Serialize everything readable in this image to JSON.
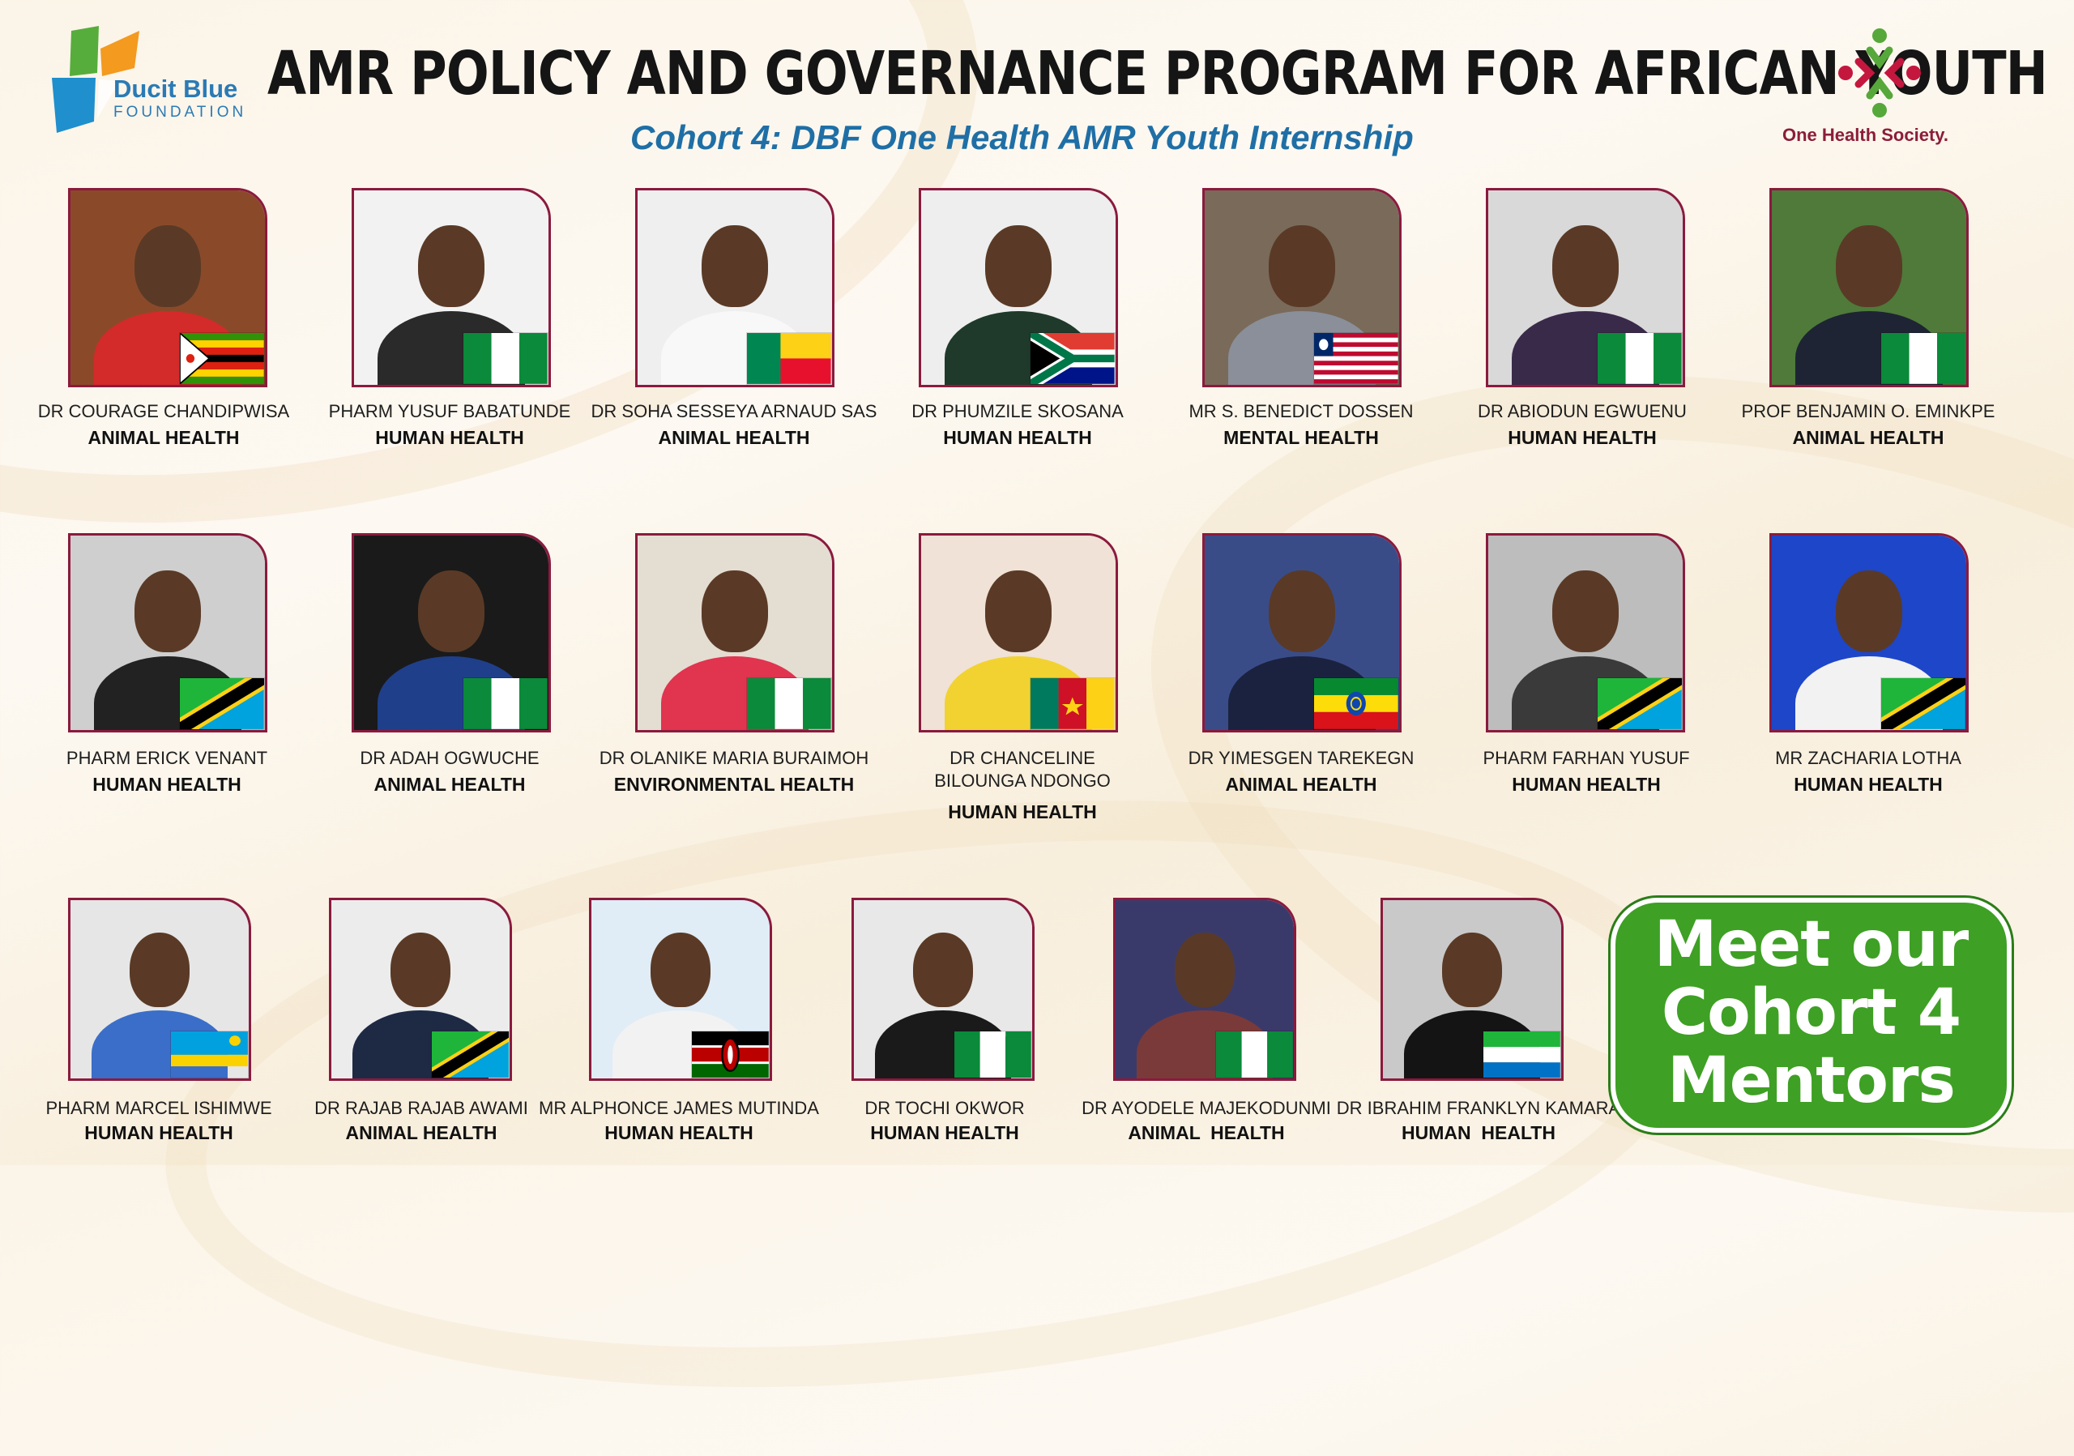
{
  "header": {
    "left_logo": {
      "name": "Ducit Blue",
      "sub": "FOUNDATION"
    },
    "title": "AMR POLICY AND GOVERNANCE  PROGRAM FOR AFRICAN  YOUTH",
    "subtitle": "Cohort 4: DBF  One Health AMR Youth Internship",
    "right_logo": {
      "name": "One Health Society."
    }
  },
  "colors": {
    "accent": "#8b1a3e",
    "subtitle": "#1f6fa6",
    "cta_green": "#3ea024"
  },
  "mentors": [
    {
      "name": "DR COURAGE CHANDIPWISA",
      "field": "ANIMAL HEALTH",
      "flag": "zimbabwe",
      "bg": "#8a4a2a",
      "shirt": "#d32a2a"
    },
    {
      "name": "PHARM YUSUF BABATUNDE",
      "field": "HUMAN HEALTH",
      "flag": "nigeria",
      "bg": "#f2f2f2",
      "shirt": "#2a2a2a"
    },
    {
      "name": "DR SOHA SESSEYA ARNAUD SAS",
      "field": "ANIMAL HEALTH",
      "flag": "benin",
      "bg": "#efefef",
      "shirt": "#f8f8f8"
    },
    {
      "name": "DR PHUMZILE SKOSANA",
      "field": "HUMAN HEALTH",
      "flag": "south-africa",
      "bg": "#eeeeee",
      "shirt": "#1f3a2a"
    },
    {
      "name": "MR S. BENEDICT DOSSEN",
      "field": "MENTAL HEALTH",
      "flag": "liberia",
      "bg": "#7a6a5a",
      "shirt": "#8a8f99"
    },
    {
      "name": "DR ABIODUN EGWUENU",
      "field": "HUMAN HEALTH",
      "flag": "nigeria",
      "bg": "#d9d9d9",
      "shirt": "#3a2a4a"
    },
    {
      "name": "PROF BENJAMIN O. EMINKPE",
      "field": "ANIMAL HEALTH",
      "flag": "nigeria",
      "bg": "#4f7a3a",
      "shirt": "#1e2433"
    },
    {
      "name": "PHARM ERICK VENANT",
      "field": "HUMAN HEALTH",
      "flag": "tanzania",
      "bg": "#cfcfcf",
      "shirt": "#222222"
    },
    {
      "name": "DR ADAH OGWUCHE",
      "field": "ANIMAL HEALTH",
      "flag": "nigeria",
      "bg": "#1a1a1a",
      "shirt": "#1f3f8a"
    },
    {
      "name": "DR OLANIKE MARIA BURAIMOH",
      "field": "ENVIRONMENTAL HEALTH",
      "flag": "nigeria",
      "bg": "#e4ddd2",
      "shirt": "#e0344f"
    },
    {
      "name": "DR CHANCELINE\nBILOUNGA NDONGO",
      "field": "HUMAN HEALTH",
      "flag": "cameroon",
      "bg": "#f0e2d6",
      "shirt": "#f2d230"
    },
    {
      "name": "DR YIMESGEN TAREKEGN",
      "field": "ANIMAL HEALTH",
      "flag": "ethiopia",
      "bg": "#3a4c88",
      "shirt": "#1b2240"
    },
    {
      "name": "PHARM FARHAN YUSUF",
      "field": "HUMAN HEALTH",
      "flag": "tanzania",
      "bg": "#bdbdbd",
      "shirt": "#3a3a3a"
    },
    {
      "name": "MR ZACHARIA LOTHA",
      "field": "HUMAN HEALTH",
      "flag": "tanzania",
      "bg": "#1e46c8",
      "shirt": "#f2f2f2"
    },
    {
      "name": "PHARM MARCEL ISHIMWE",
      "field": "HUMAN HEALTH",
      "flag": "rwanda",
      "bg": "#e6e6e6",
      "shirt": "#3a6ec8"
    },
    {
      "name": "DR RAJAB RAJAB AWAMI",
      "field": "ANIMAL HEALTH",
      "flag": "tanzania",
      "bg": "#ececec",
      "shirt": "#1e2a44"
    },
    {
      "name": "MR ALPHONCE JAMES MUTINDA",
      "field": "HUMAN HEALTH",
      "flag": "kenya",
      "bg": "#e0ecf6",
      "shirt": "#f2f2f2"
    },
    {
      "name": "DR TOCHI OKWOR",
      "field": "HUMAN HEALTH",
      "flag": "nigeria",
      "bg": "#e8e8e8",
      "shirt": "#1a1a1a"
    },
    {
      "name": "DR AYODELE MAJEKODUNMI",
      "field": "ANIMAL  HEALTH",
      "flag": "nigeria",
      "bg": "#3a3a6a",
      "shirt": "#7a3a3a"
    },
    {
      "name": "DR IBRAHIM FRANKLYN KAMARA",
      "field": "HUMAN  HEALTH",
      "flag": "sierra-leone",
      "bg": "#c9c9c9",
      "shirt": "#141414"
    }
  ],
  "cta": {
    "text": "Meet our\nCohort 4\nMentors"
  }
}
